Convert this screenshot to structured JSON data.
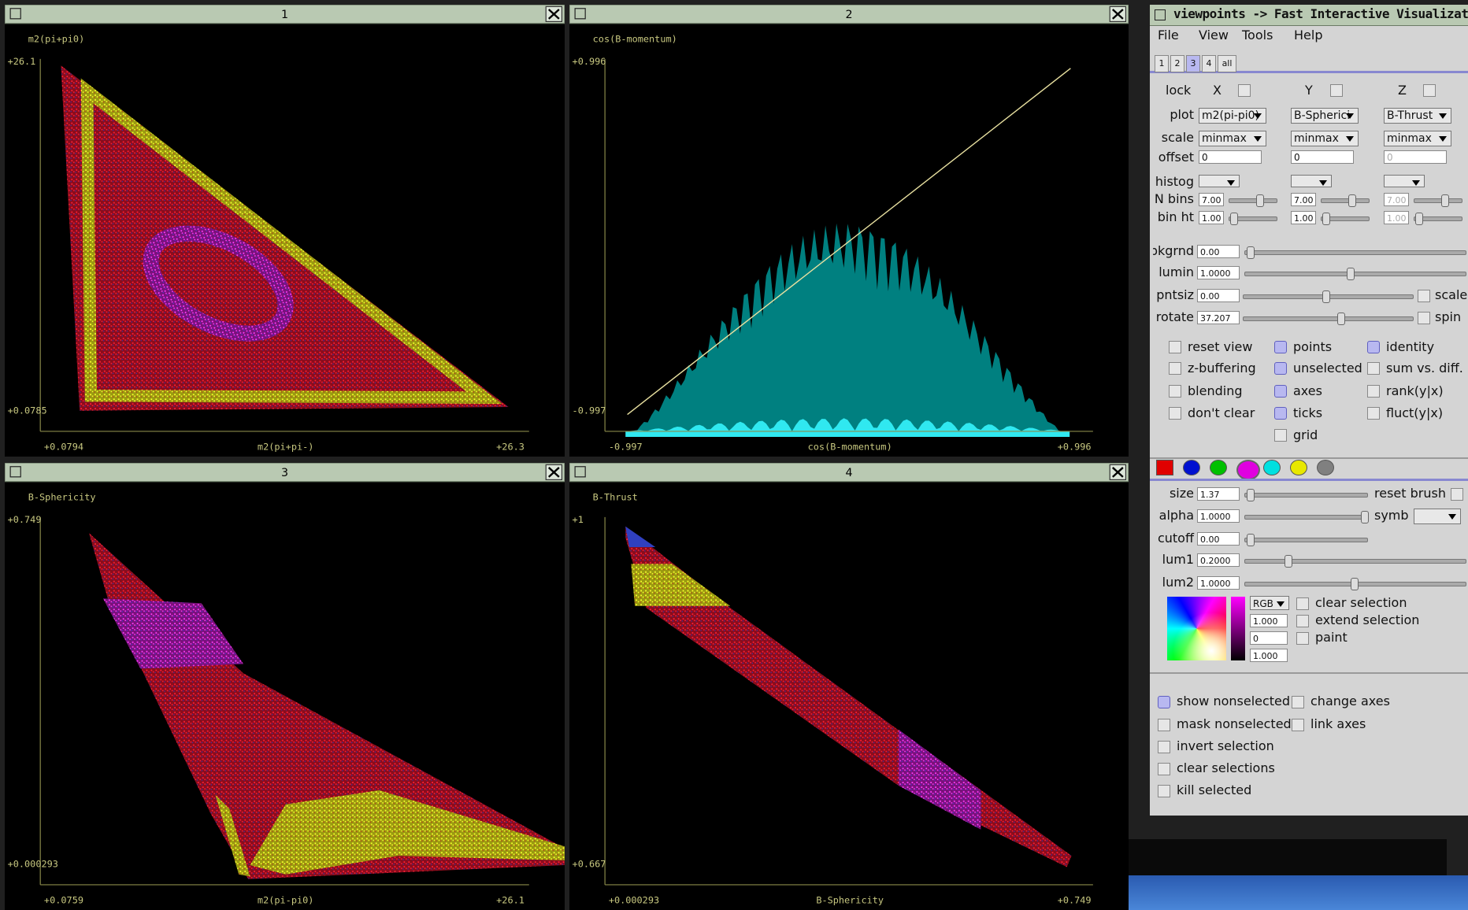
{
  "windows": [
    {
      "title": "1",
      "y_label": "m2(pi+pi0)",
      "x_label": "m2(pi+pi-)",
      "y_max": "+26.1",
      "y_min": "+0.0785",
      "x_min": "+0.0794",
      "x_max": "+26.3"
    },
    {
      "title": "2",
      "y_label": "cos(B-momentum)",
      "x_label": "cos(B-momentum)",
      "y_max": "+0.996",
      "y_min": "-0.997",
      "x_min": "-0.997",
      "x_max": "+0.996"
    },
    {
      "title": "3",
      "y_label": "B-Sphericity",
      "x_label": "m2(pi-pi0)",
      "y_max": "+0.749",
      "y_min": "+0.000293",
      "x_min": "+0.0759",
      "x_max": "+26.1"
    },
    {
      "title": "4",
      "y_label": "B-Thrust",
      "x_label": "B-Sphericity",
      "y_max": "+1",
      "y_min": "+0.667",
      "x_min": "+0.000293",
      "x_max": "+0.749"
    }
  ],
  "panel": {
    "title": "viewpoints -> Fast Interactive Visualization",
    "menu": [
      "File",
      "View",
      "Tools",
      "Help"
    ],
    "tabs": [
      "1",
      "2",
      "3",
      "4",
      "all"
    ],
    "selected_tab": 2,
    "lock": {
      "label": "lock",
      "axes": [
        "X",
        "Y",
        "Z"
      ]
    },
    "axis_rows": [
      {
        "label": "plot",
        "values": [
          "m2(pi-pi0)",
          "B-Spherici",
          "B-Thrust"
        ]
      },
      {
        "label": "scale",
        "values": [
          "minmax",
          "minmax",
          "minmax"
        ]
      },
      {
        "label": "offset",
        "values": [
          "0",
          "0",
          "0"
        ]
      }
    ],
    "histog_label": "histog",
    "hist_rows": [
      {
        "label": "N bins",
        "values": [
          "7.00",
          "7.00",
          "7.00"
        ]
      },
      {
        "label": "bin ht",
        "values": [
          "1.00",
          "1.00",
          "1.00"
        ]
      }
    ],
    "view_rows": [
      {
        "label": "bkgrnd",
        "value": "0.00"
      },
      {
        "label": "lumin",
        "value": "1.0000"
      },
      {
        "label": "pntsiz",
        "value": "0.00",
        "check": "scale"
      },
      {
        "label": "rotate",
        "value": "37.207",
        "check": "spin"
      }
    ],
    "view_checks": [
      [
        {
          "label": "reset view",
          "checked": false
        },
        {
          "label": "z-buffering",
          "checked": false
        },
        {
          "label": "blending",
          "checked": false
        },
        {
          "label": "don't clear",
          "checked": false
        }
      ],
      [
        {
          "label": "points",
          "checked": true
        },
        {
          "label": "unselected",
          "checked": true
        },
        {
          "label": "axes",
          "checked": true
        },
        {
          "label": "ticks",
          "checked": true
        },
        {
          "label": "grid",
          "checked": false
        }
      ],
      [
        {
          "label": "identity",
          "checked": true
        },
        {
          "label": "sum vs. diff.",
          "checked": false
        },
        {
          "label": "rank(y|x)",
          "checked": false
        },
        {
          "label": "fluct(y|x)",
          "checked": false
        }
      ]
    ],
    "swatches": [
      "#e00000",
      "#0010d0",
      "#00c000",
      "#e000e0",
      "#00e0e0",
      "#e8e800",
      "#808080"
    ],
    "selected_swatch": 3,
    "brush_rows": [
      {
        "label": "size",
        "value": "1.37",
        "extra": "reset brush"
      },
      {
        "label": "alpha",
        "value": "1.0000",
        "extra": "symb"
      },
      {
        "label": "cutoff",
        "value": "0.00"
      },
      {
        "label": "lum1",
        "value": "0.2000"
      },
      {
        "label": "lum2",
        "value": "1.0000"
      }
    ],
    "color_mode": "RGB",
    "color_values": [
      "1.000",
      "0",
      "1.000"
    ],
    "selection_checks": [
      "clear selection",
      "extend selection",
      "paint"
    ],
    "bottom_checks": [
      [
        "show nonselected",
        "change axes"
      ],
      [
        "mask nonselected",
        "link axes"
      ],
      [
        "invert selection"
      ],
      [
        "clear selections"
      ],
      [
        "kill selected"
      ]
    ],
    "bottom_checked": [
      true,
      false,
      false,
      false,
      false
    ]
  }
}
